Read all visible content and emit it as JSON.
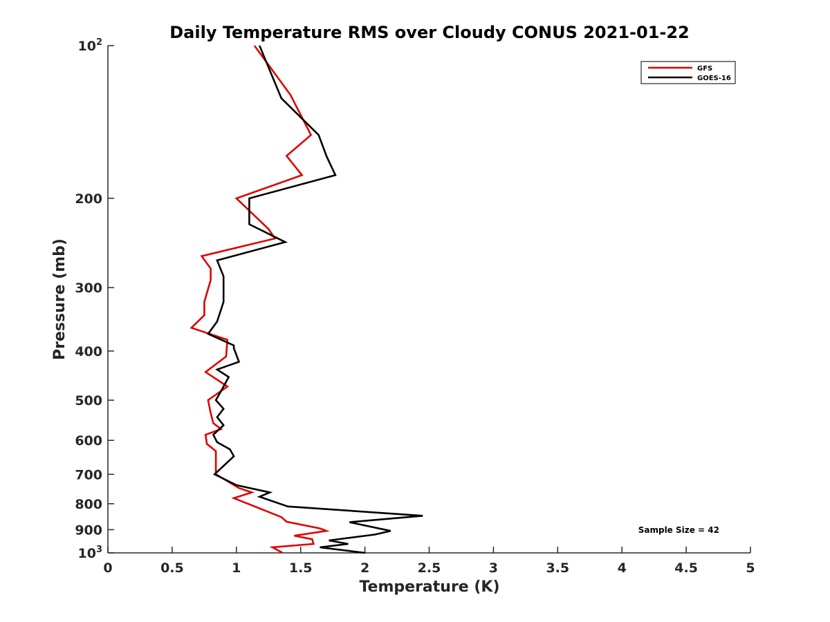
{
  "chart_data": {
    "type": "line",
    "title": "Daily Temperature RMS over Cloudy CONUS 2021-01-22",
    "xlabel": "Temperature (K)",
    "ylabel": "Pressure (mb)",
    "xlim": [
      0,
      5
    ],
    "ylim": [
      100,
      1000
    ],
    "y_scale": "log",
    "y_reversed": true,
    "grid": false,
    "legend_position": "top-right",
    "x_ticks": [
      0,
      0.5,
      1,
      1.5,
      2,
      2.5,
      3,
      3.5,
      4,
      4.5,
      5
    ],
    "x_tick_labels": [
      "0",
      "0.5",
      "1",
      "1.5",
      "2",
      "2.5",
      "3",
      "3.5",
      "4",
      "4.5",
      "5"
    ],
    "y_ticks": [
      100,
      200,
      300,
      400,
      500,
      600,
      700,
      800,
      900,
      1000
    ],
    "y_tick_labels": [
      {
        "base": "10",
        "exp": "2"
      },
      {
        "base": "200",
        "exp": ""
      },
      {
        "base": "300",
        "exp": ""
      },
      {
        "base": "400",
        "exp": ""
      },
      {
        "base": "500",
        "exp": ""
      },
      {
        "base": "600",
        "exp": ""
      },
      {
        "base": "700",
        "exp": ""
      },
      {
        "base": "800",
        "exp": ""
      },
      {
        "base": "900",
        "exp": ""
      },
      {
        "base": "10",
        "exp": "3"
      }
    ],
    "annotation": "Sample Size = 42",
    "series": [
      {
        "name": "GFS",
        "color": "#e00000",
        "points": [
          [
            1.14,
            100
          ],
          [
            1.42,
            125
          ],
          [
            1.58,
            150
          ],
          [
            1.39,
            165
          ],
          [
            1.51,
            180
          ],
          [
            1.0,
            200
          ],
          [
            1.25,
            230
          ],
          [
            1.3,
            240
          ],
          [
            0.73,
            260
          ],
          [
            0.8,
            275
          ],
          [
            0.8,
            290
          ],
          [
            0.75,
            320
          ],
          [
            0.75,
            340
          ],
          [
            0.65,
            360
          ],
          [
            0.93,
            380
          ],
          [
            0.92,
            410
          ],
          [
            0.76,
            440
          ],
          [
            0.93,
            470
          ],
          [
            0.78,
            500
          ],
          [
            0.8,
            530
          ],
          [
            0.82,
            555
          ],
          [
            0.88,
            570
          ],
          [
            0.76,
            585
          ],
          [
            0.77,
            610
          ],
          [
            0.84,
            630
          ],
          [
            0.84,
            700
          ],
          [
            1.02,
            745
          ],
          [
            1.12,
            760
          ],
          [
            0.98,
            780
          ],
          [
            1.35,
            850
          ],
          [
            1.39,
            868
          ],
          [
            1.65,
            895
          ],
          [
            1.7,
            905
          ],
          [
            1.45,
            925
          ],
          [
            1.59,
            940
          ],
          [
            1.6,
            960
          ],
          [
            1.28,
            975
          ],
          [
            1.36,
            1000
          ]
        ]
      },
      {
        "name": "GOES-16",
        "color": "#000000",
        "points": [
          [
            1.18,
            100
          ],
          [
            1.35,
            127
          ],
          [
            1.64,
            150
          ],
          [
            1.7,
            165
          ],
          [
            1.77,
            180
          ],
          [
            1.1,
            200
          ],
          [
            1.1,
            225
          ],
          [
            1.38,
            244
          ],
          [
            0.85,
            265
          ],
          [
            0.9,
            285
          ],
          [
            0.9,
            320
          ],
          [
            0.85,
            350
          ],
          [
            0.78,
            370
          ],
          [
            0.98,
            390
          ],
          [
            0.98,
            395
          ],
          [
            1.02,
            420
          ],
          [
            0.85,
            435
          ],
          [
            0.94,
            450
          ],
          [
            0.88,
            480
          ],
          [
            0.84,
            500
          ],
          [
            0.9,
            520
          ],
          [
            0.85,
            540
          ],
          [
            0.9,
            560
          ],
          [
            0.82,
            585
          ],
          [
            0.85,
            605
          ],
          [
            0.95,
            625
          ],
          [
            0.98,
            645
          ],
          [
            0.83,
            700
          ],
          [
            1.0,
            735
          ],
          [
            1.05,
            740
          ],
          [
            1.26,
            760
          ],
          [
            1.18,
            775
          ],
          [
            1.4,
            810
          ],
          [
            2.45,
            845
          ],
          [
            1.88,
            870
          ],
          [
            2.2,
            905
          ],
          [
            2.08,
            920
          ],
          [
            1.72,
            945
          ],
          [
            1.87,
            960
          ],
          [
            1.65,
            975
          ],
          [
            2.0,
            1000
          ]
        ]
      }
    ]
  }
}
